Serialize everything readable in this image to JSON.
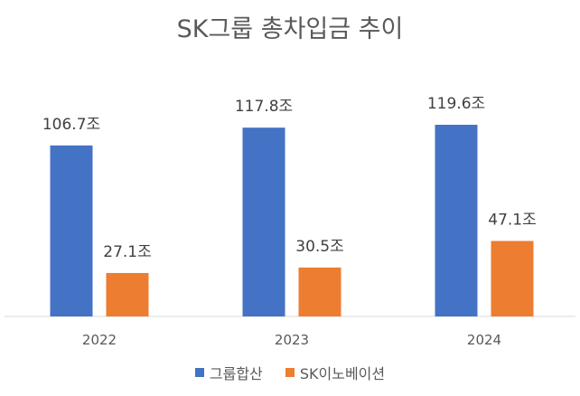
{
  "chart_data": {
    "type": "bar",
    "title": "SK그룹 총차입금 추이",
    "xlabel": "",
    "ylabel": "",
    "categories": [
      "2022",
      "2023",
      "2024"
    ],
    "series": [
      {
        "name": "그룹합산",
        "color": "#4472C4",
        "values": [
          106.7,
          117.8,
          119.6
        ],
        "labels": [
          "106.7조",
          "117.8조",
          "119.6조"
        ]
      },
      {
        "name": "SK이노베이션",
        "color": "#ED7D31",
        "values": [
          27.1,
          30.5,
          47.1
        ],
        "labels": [
          "27.1조",
          "30.5조",
          "47.1조"
        ]
      }
    ],
    "ylim": [
      0,
      130
    ],
    "grid": false,
    "legend": "bottom"
  }
}
